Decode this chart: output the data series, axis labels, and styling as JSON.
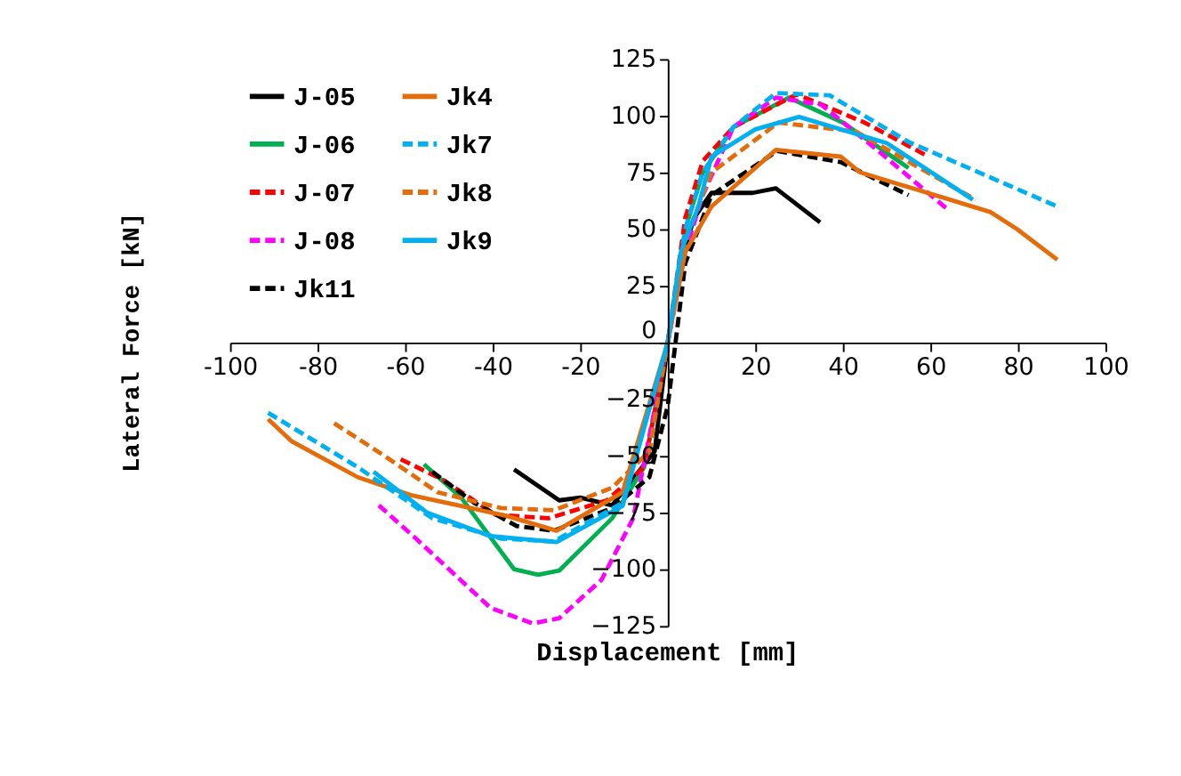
{
  "chart_data": {
    "type": "line",
    "xlabel": "Displacement [mm]",
    "ylabel": "Lateral Force [kN]",
    "xlim": [
      -100,
      100
    ],
    "xticks": [
      -100,
      -80,
      -60,
      -40,
      -20,
      {
        "value": 0,
        "label": null
      },
      20,
      40,
      60,
      80,
      100
    ],
    "ylim": [
      -125,
      125
    ],
    "yticks": [
      -125,
      -100,
      -75,
      -50,
      -25,
      0,
      25,
      50,
      75,
      100,
      125
    ],
    "grid": false,
    "legend": "top left",
    "marker": "none",
    "series": [
      {
        "name": "J-05",
        "color": "#000000",
        "line_style": "solid",
        "x": [
          -35.1,
          -24.8,
          -20,
          -12.7,
          -3,
          0,
          3,
          6,
          10,
          19.4,
          24.7,
          34.8
        ],
        "values": [
          -56,
          -69.6,
          -68.4,
          -71.8,
          -48,
          0,
          35,
          55,
          66,
          66,
          68,
          53
        ]
      },
      {
        "name": "J-06",
        "color": "#00b050",
        "line_style": "solid",
        "x": [
          -55.7,
          -47.2,
          -35.1,
          -29.6,
          -24.8,
          -12.7,
          -5.4,
          0,
          4,
          8,
          15,
          27.7,
          40,
          55
        ],
        "values": [
          -53.7,
          -68.4,
          -100,
          -102.4,
          -100.6,
          -77.5,
          -55,
          0,
          50,
          75,
          95,
          108,
          97,
          77
        ]
      },
      {
        "name": "J-07",
        "color": "#ff0000",
        "line_style": "dashed",
        "x": [
          -61,
          -51.4,
          -39.3,
          -27.2,
          -13.9,
          -5.4,
          0,
          4,
          8,
          15,
          29.5,
          45,
          59.6
        ],
        "values": [
          -51.5,
          -60.5,
          -76,
          -77.5,
          -69.6,
          -55,
          0,
          55,
          80,
          95,
          109.5,
          97,
          82
        ]
      },
      {
        "name": "J-08",
        "color": "#ff00ff",
        "line_style": "dashed",
        "x": [
          -66,
          -57.5,
          -40.5,
          -30.9,
          -24.8,
          -15.1,
          -7.9,
          0,
          4,
          8,
          15,
          24.7,
          35,
          47.8,
          64
        ],
        "values": [
          -71.8,
          -86.5,
          -117,
          -123.9,
          -121.6,
          -104.6,
          -77.5,
          0,
          40,
          65,
          95,
          108,
          105,
          85,
          58.6
        ]
      },
      {
        "name": "Jk11",
        "color": "#000000",
        "line_style": "dashed",
        "x": [
          -53.8,
          -44.2,
          -34.5,
          -26,
          -12.7,
          -4.2,
          0,
          4,
          10,
          25,
          39.5,
          55
        ],
        "values": [
          -57,
          -70.7,
          -80.9,
          -83,
          -73,
          -59.4,
          -28,
          35,
          65,
          84.5,
          79.6,
          65
        ]
      },
      {
        "name": "Jk4",
        "color": "#e46c0a",
        "line_style": "solid",
        "x": [
          -91.3,
          -85.9,
          -70.8,
          -58.7,
          -36.9,
          -25.4,
          -10.3,
          0,
          4,
          10,
          24.7,
          39.5,
          44,
          73.8,
          79.8,
          89
        ],
        "values": [
          -33.8,
          -43.6,
          -59.4,
          -67.3,
          -76.4,
          -83,
          -66,
          0,
          40,
          60,
          85,
          82,
          75,
          57.5,
          50,
          36.5
        ]
      },
      {
        "name": "Jk7",
        "color": "#00b0f0",
        "line_style": "dashed",
        "x": [
          -91.3,
          -70.8,
          -53.8,
          -38.1,
          -26,
          -10.3,
          0,
          4,
          8,
          15,
          24.7,
          37,
          55,
          89
        ],
        "values": [
          -31,
          -55,
          -77.5,
          -86.5,
          -87.7,
          -70.7,
          0,
          50,
          75,
          95,
          110,
          109,
          88.5,
          60
        ]
      },
      {
        "name": "Jk8",
        "color": "#e46c0a",
        "line_style": "dashed",
        "x": [
          -76.2,
          -64.7,
          -52.6,
          -38.1,
          -26,
          -12.7,
          -4.2,
          0,
          4,
          10,
          25.3,
          43,
          70.3
        ],
        "values": [
          -35.6,
          -50,
          -66,
          -73,
          -74,
          -64,
          -48,
          0,
          45,
          75,
          97,
          93,
          63
        ]
      },
      {
        "name": "Jk9",
        "color": "#00b0f0",
        "line_style": "solid",
        "x": [
          -67.2,
          -55,
          -40.5,
          -25.4,
          -10.3,
          0,
          3,
          7,
          10,
          20,
          30,
          50,
          69.7
        ],
        "values": [
          -57,
          -75,
          -85.4,
          -88,
          -72,
          0,
          40,
          60,
          82,
          94,
          99.5,
          88,
          63
        ]
      }
    ]
  }
}
